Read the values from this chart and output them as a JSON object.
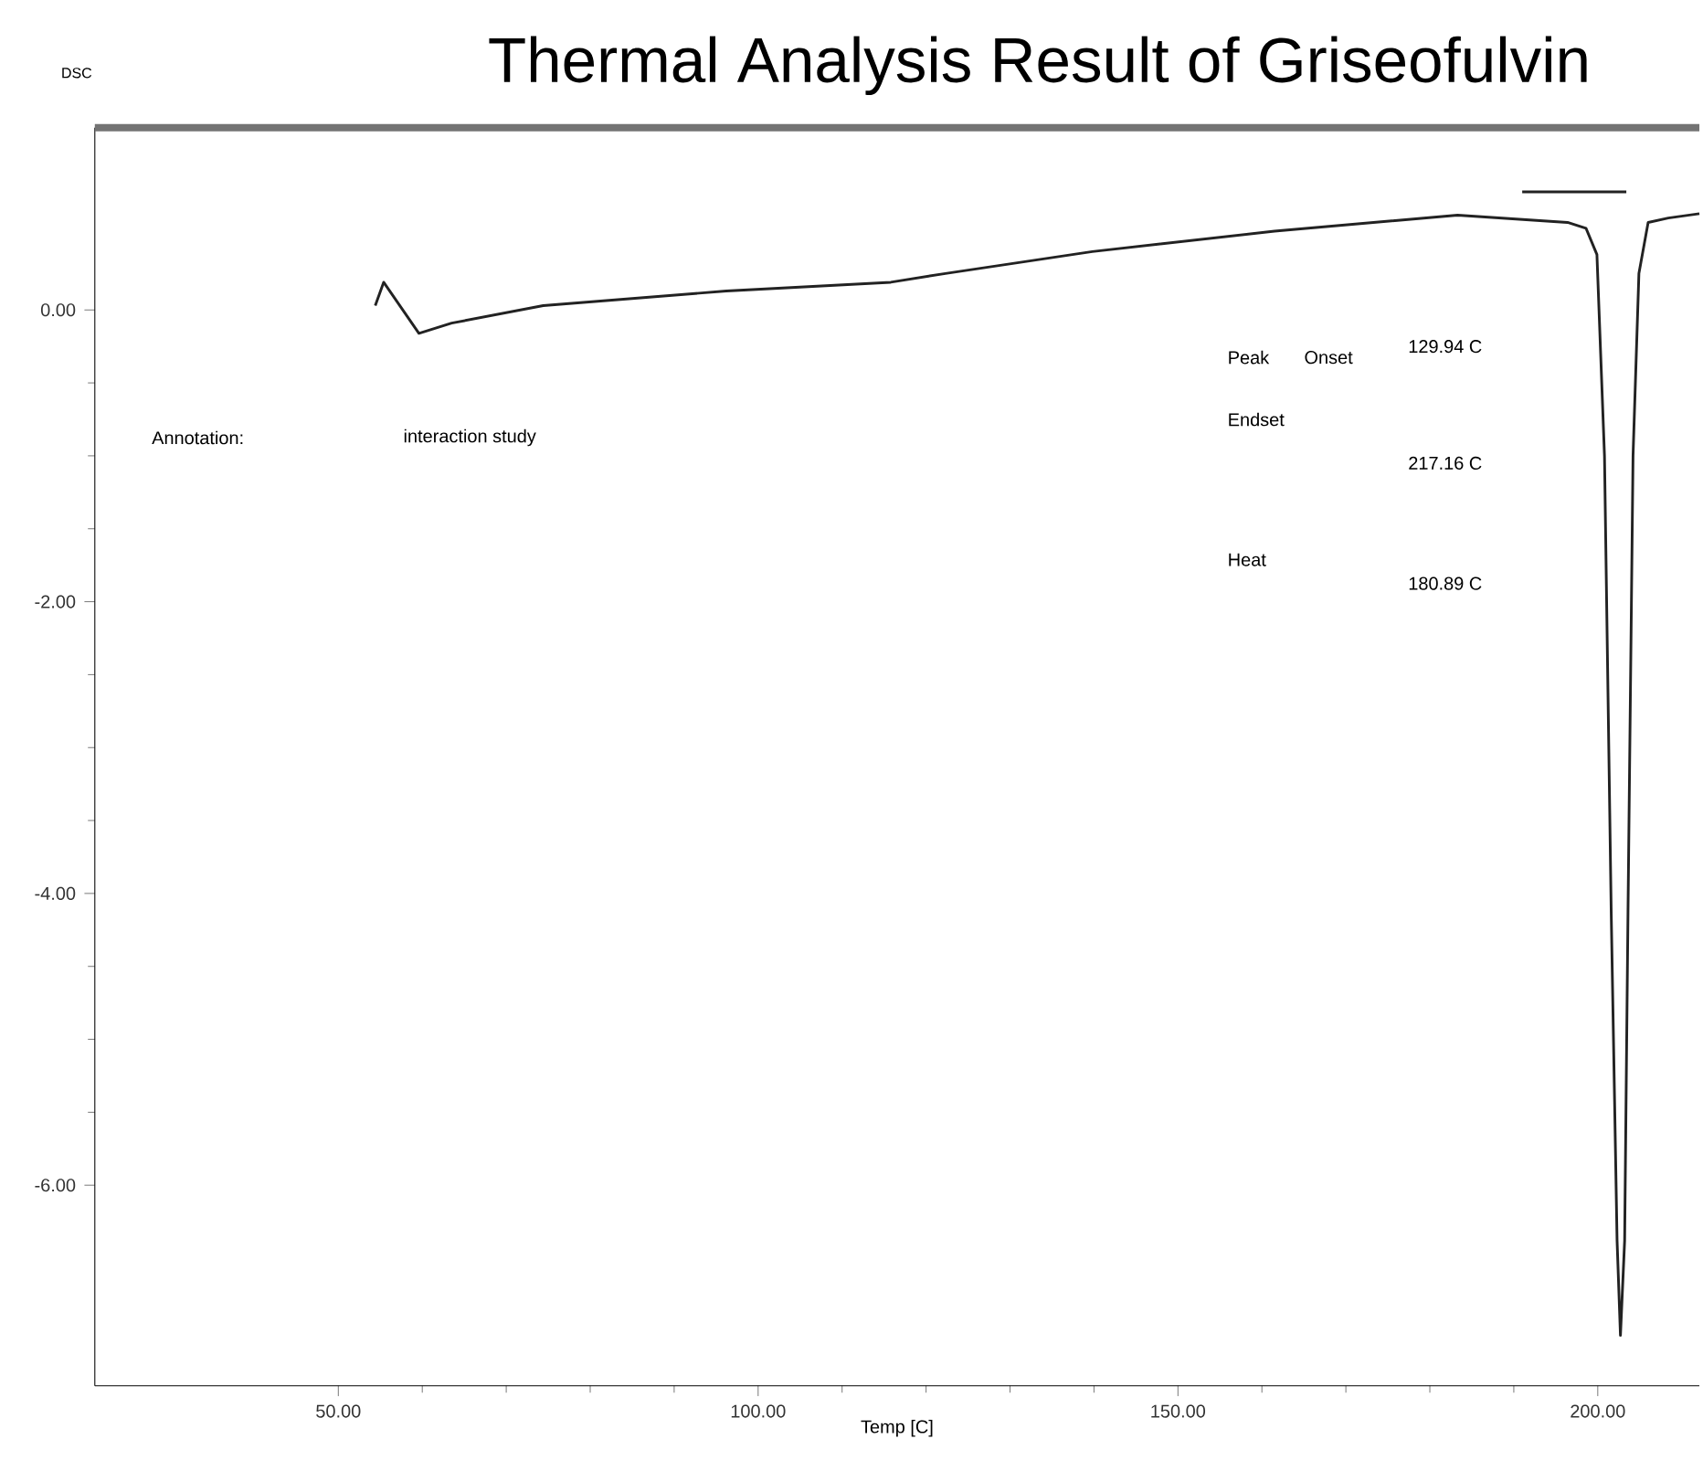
{
  "chart_data": {
    "type": "line",
    "title": "Thermal Analysis Result of Griseofulvin",
    "xlabel": "Temp [C]",
    "ylabel": "DSC",
    "xlim": [
      21,
      212.1
    ],
    "ylim": [
      -7.375,
      1.25
    ],
    "xticks": [
      {
        "value": 50,
        "label": "50.00"
      },
      {
        "value": 100,
        "label": "100.00"
      },
      {
        "value": 150,
        "label": "150.00"
      },
      {
        "value": 200,
        "label": "200.00"
      }
    ],
    "yticks": [
      {
        "value": 0,
        "label": "0.00"
      },
      {
        "value": -2,
        "label": "-2.00"
      },
      {
        "value": -4,
        "label": "-4.00"
      },
      {
        "value": -6,
        "label": "-6.00"
      }
    ],
    "annotations": [
      "Annotation:",
      "interaction study",
      "Peak",
      "Onset",
      "129.94 C",
      "Endset",
      "217.16 C",
      "Heat",
      "180.89 C"
    ],
    "series": [
      {
        "color": "#222222",
        "x": [
          54.4,
          55.4,
          59.6,
          63.5,
          74.4,
          96.2,
          115.8,
          122.3,
          139.8,
          161.5,
          183.3,
          196.4,
          198.6,
          199.9,
          200.8,
          201.6,
          202.3,
          202.7,
          203.2,
          203.6,
          204.2,
          204.9,
          206.0,
          208.4,
          212.1
        ],
        "values": [
          0.03,
          0.19,
          -0.16,
          -0.09,
          0.03,
          0.13,
          0.19,
          0.25,
          0.4,
          0.54,
          0.65,
          0.6,
          0.56,
          0.38,
          -1.0,
          -4.13,
          -6.38,
          -7.03,
          -6.38,
          -4.13,
          -1.0,
          0.25,
          0.6,
          0.63,
          0.66
        ]
      },
      {
        "color": "#222222",
        "x": [
          191,
          203.4
        ],
        "values": [
          0.81,
          0.81
        ]
      }
    ]
  }
}
